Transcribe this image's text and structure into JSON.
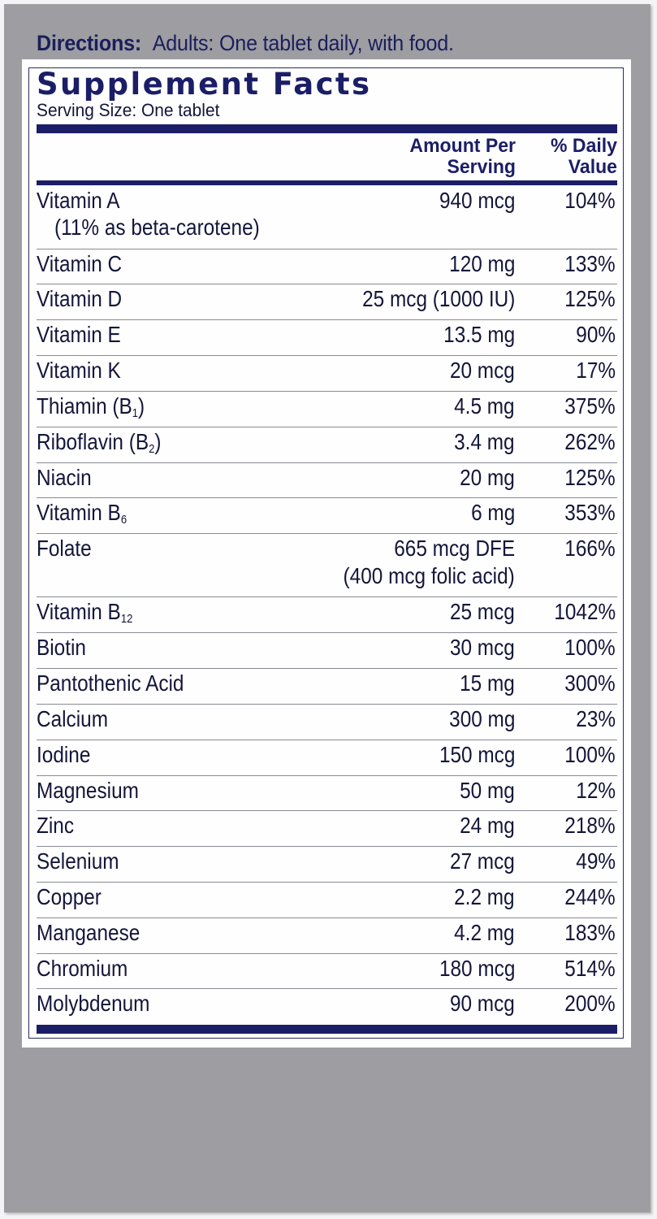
{
  "directions": {
    "label": "Directions:",
    "text": "Adults:  One tablet daily, with food."
  },
  "panel": {
    "title": "Supplement Facts",
    "serving_size": "Serving Size: One tablet",
    "headers": {
      "amount_line1": "Amount Per",
      "amount_line2": "Serving",
      "dv_line1": "% Daily",
      "dv_line2": "Value"
    },
    "colors": {
      "navy": "#1b1e66",
      "panel_gray": "#9d9da2",
      "text": "#14163a"
    },
    "rows": [
      {
        "name": "Vitamin A",
        "name_sub": "",
        "name_note": "(11% as beta-carotene)",
        "amount": "940 mcg",
        "amount_note": "",
        "dv": "104%"
      },
      {
        "name": "Vitamin C",
        "name_sub": "",
        "name_note": "",
        "amount": "120 mg",
        "amount_note": "",
        "dv": "133%"
      },
      {
        "name": "Vitamin D",
        "name_sub": "",
        "name_note": "",
        "amount": "25 mcg (1000 IU)",
        "amount_note": "",
        "dv": "125%"
      },
      {
        "name": "Vitamin E",
        "name_sub": "",
        "name_note": "",
        "amount": "13.5 mg",
        "amount_note": "",
        "dv": "90%"
      },
      {
        "name": "Vitamin K",
        "name_sub": "",
        "name_note": "",
        "amount": "20 mcg",
        "amount_note": "",
        "dv": "17%"
      },
      {
        "name": "Thiamin (B",
        "name_sub": "1",
        "name_suffix": ")",
        "name_note": "",
        "amount": "4.5 mg",
        "amount_note": "",
        "dv": "375%"
      },
      {
        "name": "Riboflavin (B",
        "name_sub": "2",
        "name_suffix": ")",
        "name_note": "",
        "amount": "3.4 mg",
        "amount_note": "",
        "dv": "262%"
      },
      {
        "name": "Niacin",
        "name_sub": "",
        "name_note": "",
        "amount": "20 mg",
        "amount_note": "",
        "dv": "125%"
      },
      {
        "name": "Vitamin B",
        "name_sub": "6",
        "name_suffix": "",
        "name_note": "",
        "amount": "6 mg",
        "amount_note": "",
        "dv": "353%"
      },
      {
        "name": "Folate",
        "name_sub": "",
        "name_note": "",
        "amount": "665 mcg DFE",
        "amount_note": "(400 mcg folic acid)",
        "dv": "166%"
      },
      {
        "name": "Vitamin B",
        "name_sub": "12",
        "name_suffix": "",
        "name_note": "",
        "amount": "25 mcg",
        "amount_note": "",
        "dv": "1042%"
      },
      {
        "name": "Biotin",
        "name_sub": "",
        "name_note": "",
        "amount": "30 mcg",
        "amount_note": "",
        "dv": "100%"
      },
      {
        "name": "Pantothenic Acid",
        "name_sub": "",
        "name_note": "",
        "amount": "15 mg",
        "amount_note": "",
        "dv": "300%"
      },
      {
        "name": "Calcium",
        "name_sub": "",
        "name_note": "",
        "amount": "300 mg",
        "amount_note": "",
        "dv": "23%"
      },
      {
        "name": "Iodine",
        "name_sub": "",
        "name_note": "",
        "amount": "150 mcg",
        "amount_note": "",
        "dv": "100%"
      },
      {
        "name": "Magnesium",
        "name_sub": "",
        "name_note": "",
        "amount": "50 mg",
        "amount_note": "",
        "dv": "12%"
      },
      {
        "name": "Zinc",
        "name_sub": "",
        "name_note": "",
        "amount": "24 mg",
        "amount_note": "",
        "dv": "218%"
      },
      {
        "name": "Selenium",
        "name_sub": "",
        "name_note": "",
        "amount": "27 mcg",
        "amount_note": "",
        "dv": "49%"
      },
      {
        "name": "Copper",
        "name_sub": "",
        "name_note": "",
        "amount": "2.2 mg",
        "amount_note": "",
        "dv": "244%"
      },
      {
        "name": "Manganese",
        "name_sub": "",
        "name_note": "",
        "amount": "4.2 mg",
        "amount_note": "",
        "dv": "183%"
      },
      {
        "name": "Chromium",
        "name_sub": "",
        "name_note": "",
        "amount": "180 mcg",
        "amount_note": "",
        "dv": "514%"
      },
      {
        "name": "Molybdenum",
        "name_sub": "",
        "name_note": "",
        "amount": "90 mcg",
        "amount_note": "",
        "dv": "200%"
      }
    ]
  }
}
